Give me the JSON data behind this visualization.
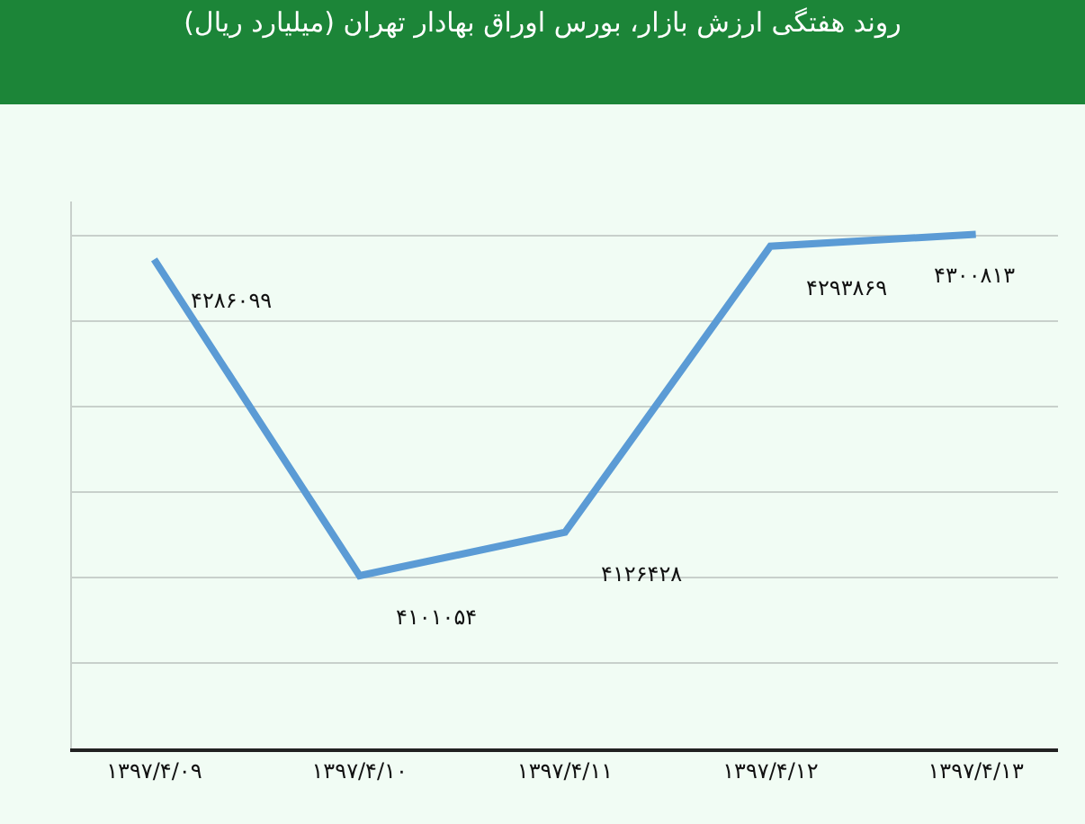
{
  "chart_data": {
    "type": "line",
    "title": "روند هفتگی ارزش بازار، بورس اوراق بهادار تهران (میلیارد ریال)",
    "categories": [
      "۱۳۹۷/۴/۰۹",
      "۱۳۹۷/۴/۱۰",
      "۱۳۹۷/۴/۱۱",
      "۱۳۹۷/۴/۱۲",
      "۱۳۹۷/۴/۱۳"
    ],
    "series": [
      {
        "color": "#5b9bd5",
        "values": [
          4286099,
          4101054,
          4126428,
          4293869,
          4300813
        ],
        "value_labels": [
          "۴۲۸۶۰۹۹",
          "۴۱۰۱۰۵۴",
          "۴۱۲۶۴۲۸",
          "۴۲۹۳۸۶۹",
          "۴۳۰۰۸۱۳"
        ]
      }
    ],
    "ylim": [
      4000000,
      4320000
    ],
    "yticks": [
      {
        "value": 4000000,
        "label": null
      },
      {
        "value": 4050000,
        "label": null
      },
      {
        "value": 4100000,
        "label": null
      },
      {
        "value": 4150000,
        "label": null
      },
      {
        "value": 4200000,
        "label": null
      },
      {
        "value": 4250000,
        "label": null
      },
      {
        "value": 4300000,
        "label": null
      }
    ],
    "grid": "y",
    "tick_labels": "x",
    "marker": "none",
    "line_style": "solid"
  }
}
